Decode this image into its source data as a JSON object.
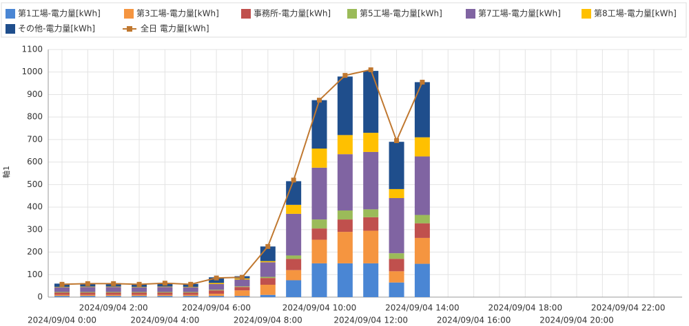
{
  "chart_data": {
    "type": "stacked-bar-line",
    "y_label": "軸1",
    "categories": [
      "2024/09/04 0:00",
      null,
      "2024/09/04 2:00",
      null,
      "2024/09/04 4:00",
      null,
      "2024/09/04 6:00",
      null,
      "2024/09/04 8:00",
      null,
      "2024/09/04 10:00",
      null,
      "2024/09/04 12:00",
      null,
      "2024/09/04 14:00",
      null,
      "2024/09/04 16:00",
      null,
      "2024/09/04 18:00",
      null,
      "2024/09/04 20:00",
      null,
      "2024/09/04 22:00",
      null
    ],
    "ylim": [
      0,
      1100
    ],
    "yticks": [
      0,
      100,
      200,
      300,
      400,
      500,
      600,
      700,
      800,
      900,
      1000,
      1100
    ],
    "grid": true,
    "series": [
      {
        "name": "第1工場-電力量[kWh]",
        "color": "#4a86d4",
        "values": [
          5,
          5,
          5,
          5,
          5,
          5,
          5,
          5,
          10,
          75,
          150,
          150,
          150,
          65,
          148,
          null,
          null,
          null,
          null,
          null,
          null,
          null,
          null,
          null
        ]
      },
      {
        "name": "第3工場-電力量[kWh]",
        "color": "#f59540",
        "values": [
          5,
          5,
          5,
          5,
          5,
          5,
          10,
          25,
          45,
          45,
          105,
          140,
          145,
          50,
          115,
          null,
          null,
          null,
          null,
          null,
          null,
          null,
          null,
          null
        ]
      },
      {
        "name": "事務所-電力量[kWh]",
        "color": "#c0504d",
        "values": [
          10,
          10,
          10,
          10,
          10,
          10,
          15,
          15,
          30,
          50,
          50,
          55,
          60,
          55,
          65,
          null,
          null,
          null,
          null,
          null,
          null,
          null,
          null,
          null
        ]
      },
      {
        "name": "第5工場-電力量[kWh]",
        "color": "#9bbb59",
        "values": [
          3,
          3,
          3,
          3,
          3,
          3,
          3,
          3,
          5,
          15,
          40,
          40,
          35,
          25,
          37,
          null,
          null,
          null,
          null,
          null,
          null,
          null,
          null,
          null
        ]
      },
      {
        "name": "第7工場-電力量[kWh]",
        "color": "#8064a2",
        "values": [
          20,
          22,
          22,
          20,
          22,
          20,
          25,
          30,
          65,
          185,
          230,
          250,
          255,
          245,
          260,
          null,
          null,
          null,
          null,
          null,
          null,
          null,
          null,
          null
        ]
      },
      {
        "name": "第8工場-電力量[kWh]",
        "color": "#ffc000",
        "values": [
          2,
          2,
          2,
          2,
          2,
          2,
          5,
          5,
          5,
          40,
          85,
          85,
          85,
          40,
          85,
          null,
          null,
          null,
          null,
          null,
          null,
          null,
          null,
          null
        ]
      },
      {
        "name": "その他-電力量[kWh]",
        "color": "#1f4e8c",
        "values": [
          15,
          15,
          15,
          14,
          16,
          14,
          25,
          10,
          65,
          105,
          215,
          260,
          275,
          210,
          245,
          null,
          null,
          null,
          null,
          null,
          null,
          null,
          null,
          null
        ]
      },
      {
        "name": "全日 電力量[kWh]",
        "color": "#c07830",
        "kind": "line",
        "values": [
          57,
          60,
          60,
          57,
          62,
          57,
          85,
          88,
          225,
          520,
          875,
          985,
          1010,
          695,
          955,
          null,
          null,
          null,
          null,
          null,
          null,
          null,
          null,
          null
        ]
      }
    ]
  }
}
